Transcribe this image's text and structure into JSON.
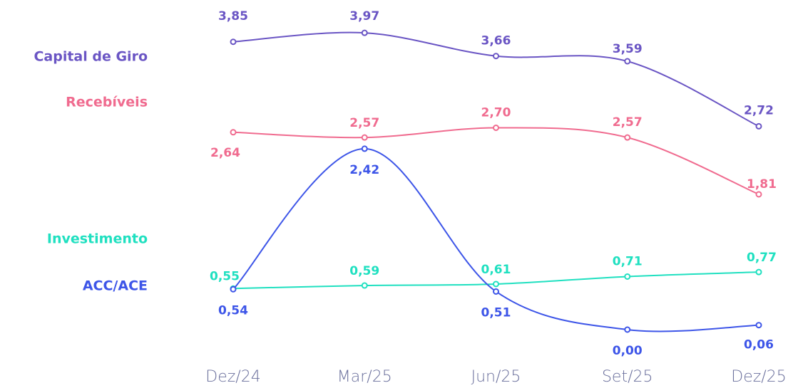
{
  "chart_data": {
    "type": "line",
    "categories": [
      "Dez/24",
      "Mar/25",
      "Jun/25",
      "Set/25",
      "Dez/25"
    ],
    "ylim": [
      0,
      4
    ],
    "series": [
      {
        "name": "Capital de Giro",
        "color": "#6a55c4",
        "values": [
          3.85,
          3.97,
          3.66,
          3.59,
          2.72
        ],
        "value_labels": [
          "3,85",
          "3,97",
          "3,66",
          "3,59",
          "2,72"
        ]
      },
      {
        "name": "Recebíveis",
        "color": "#f06b8f",
        "values": [
          2.64,
          2.57,
          2.7,
          2.57,
          1.81
        ],
        "value_labels": [
          "2,64",
          "2,57",
          "2,70",
          "2,57",
          "1,81"
        ]
      },
      {
        "name": "Investimento",
        "color": "#1fe0c0",
        "values": [
          0.55,
          0.59,
          0.61,
          0.71,
          0.77
        ],
        "value_labels": [
          "0,55",
          "0,59",
          "0,61",
          "0,71",
          "0,77"
        ]
      },
      {
        "name": "ACC/ACE",
        "color": "#3d55e8",
        "values": [
          0.54,
          2.42,
          0.51,
          0.0,
          0.06
        ],
        "value_labels": [
          "0,54",
          "2,42",
          "0,51",
          "0,00",
          "0,06"
        ]
      }
    ]
  }
}
